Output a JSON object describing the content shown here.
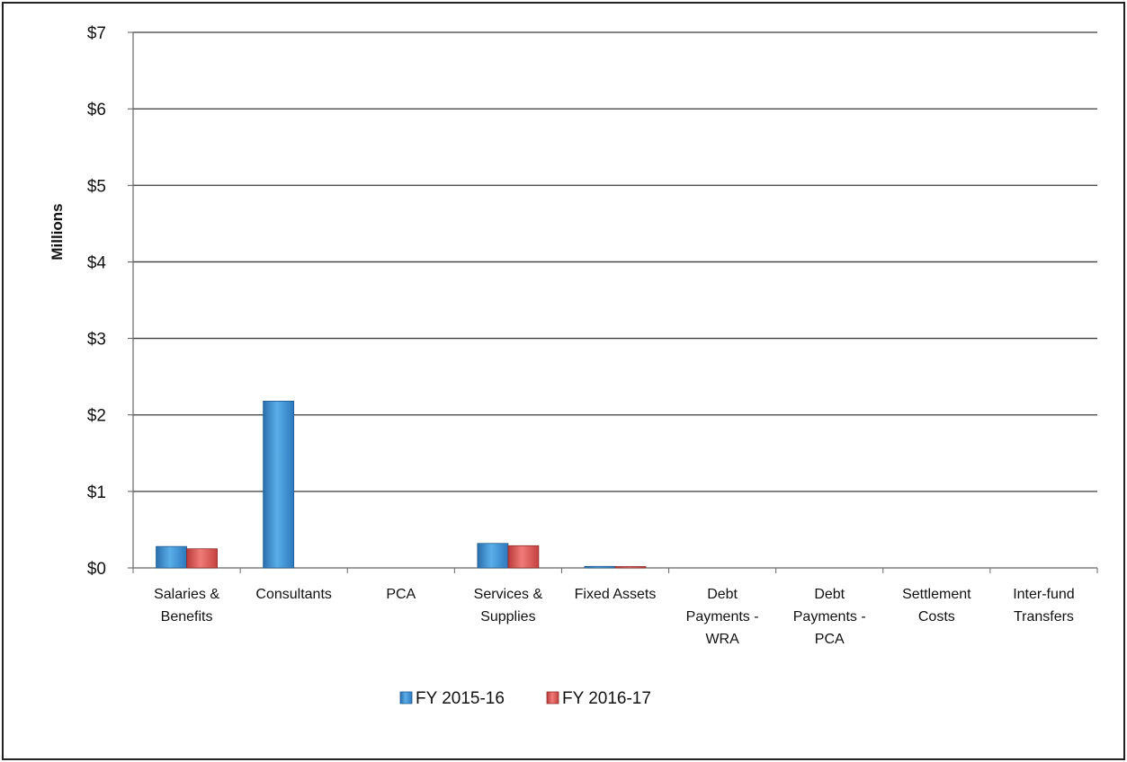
{
  "chart_data": {
    "type": "bar",
    "ylabel": "Millions",
    "ylim": [
      0,
      7
    ],
    "yticks": [
      "$0",
      "$1",
      "$2",
      "$3",
      "$4",
      "$5",
      "$6",
      "$7"
    ],
    "categories": [
      [
        "Salaries &",
        "Benefits"
      ],
      [
        "Consultants"
      ],
      [
        "PCA"
      ],
      [
        "Services &",
        "Supplies"
      ],
      [
        "Fixed Assets"
      ],
      [
        "Debt",
        "Payments -",
        "WRA"
      ],
      [
        "Debt",
        "Payments -",
        "PCA"
      ],
      [
        "Settlement",
        "Costs"
      ],
      [
        "Inter-fund",
        "Transfers"
      ]
    ],
    "series": [
      {
        "name": "FY 2015-16",
        "color": "#3d8fd4",
        "values": [
          0.28,
          2.18,
          0,
          0.32,
          0.02,
          0,
          0,
          0,
          0
        ]
      },
      {
        "name": "FY 2016-17",
        "color": "#e05a57",
        "values": [
          0.25,
          0,
          0,
          0.29,
          0.01,
          0,
          0,
          0,
          0
        ]
      }
    ],
    "grid": true,
    "legend_position": "bottom"
  }
}
